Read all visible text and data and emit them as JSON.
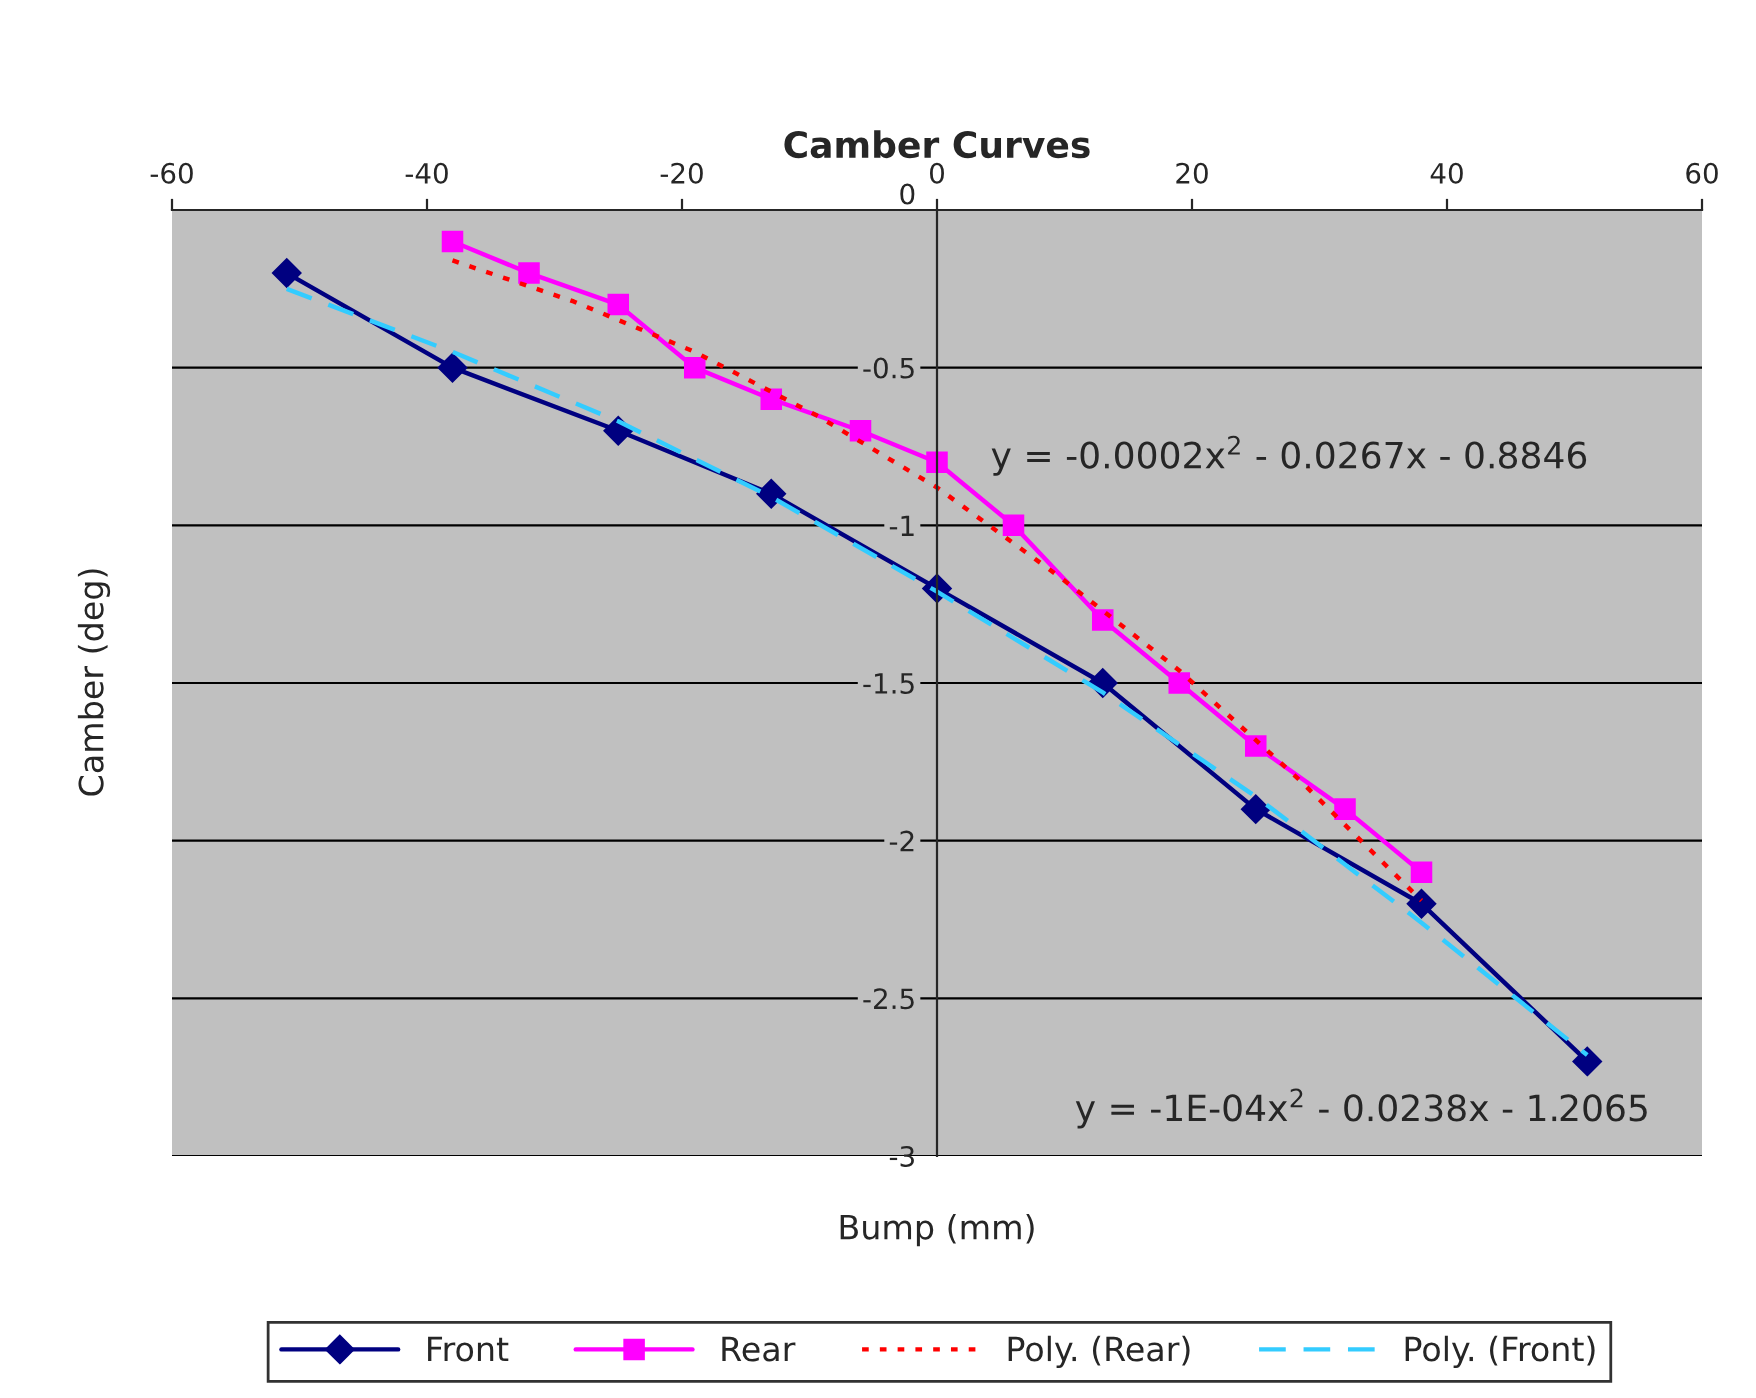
{
  "chart_data": {
    "type": "line",
    "title": "Camber Curves",
    "xlabel": "Bump (mm)",
    "ylabel": "Camber (deg)",
    "xlim": [
      -60,
      60
    ],
    "xticks": [
      -60,
      -40,
      -20,
      0,
      20,
      40,
      60
    ],
    "ylim": [
      -3,
      0
    ],
    "yticks": [
      -3,
      -2.5,
      -2,
      -1.5,
      -1,
      -0.5,
      0
    ],
    "grid": "y",
    "legend": "bottom",
    "series": [
      {
        "name": "Front",
        "color": "#000080",
        "marker": "diamond",
        "line_style": "solid",
        "x": [
          -51,
          -38,
          -25,
          -13,
          0,
          13,
          25,
          38,
          51
        ],
        "values": [
          -0.2,
          -0.5,
          -0.7,
          -0.9,
          -1.2,
          -1.5,
          -1.9,
          -2.2,
          -2.7
        ]
      },
      {
        "name": "Rear",
        "color": "#ff00ff",
        "marker": "square",
        "line_style": "solid",
        "x": [
          -38,
          -32,
          -25,
          -19,
          -13,
          -6,
          0,
          6,
          13,
          19,
          25,
          32,
          38
        ],
        "values": [
          -0.1,
          -0.2,
          -0.3,
          -0.5,
          -0.6,
          -0.7,
          -0.8,
          -1.0,
          -1.3,
          -1.5,
          -1.7,
          -1.9,
          -2.1
        ]
      },
      {
        "name": "Poly. (Rear)",
        "color": "#ff0000",
        "marker": "none",
        "line_style": "dotted",
        "x": [
          -38,
          -28.5,
          -19,
          -9.5,
          0,
          9.5,
          19,
          28.5,
          38
        ],
        "values": [
          -0.16,
          -0.29,
          -0.45,
          -0.65,
          -0.88,
          -1.16,
          -1.46,
          -1.81,
          -2.19
        ]
      },
      {
        "name": "Poly. (Front)",
        "color": "#33ccff",
        "marker": "none",
        "line_style": "dashed",
        "x": [
          -51,
          -38,
          -25,
          -13,
          0,
          13,
          25,
          38,
          51
        ],
        "values": [
          -0.25,
          -0.45,
          -0.67,
          -0.91,
          -1.21,
          -1.53,
          -1.86,
          -2.26,
          -2.68
        ]
      }
    ],
    "annotations": [
      "y = -0.0002x$^{2}$ - 0.0267x - 0.8846",
      "y = -1E-04x$^{2}$ - 0.0238x - 1.2065"
    ]
  }
}
